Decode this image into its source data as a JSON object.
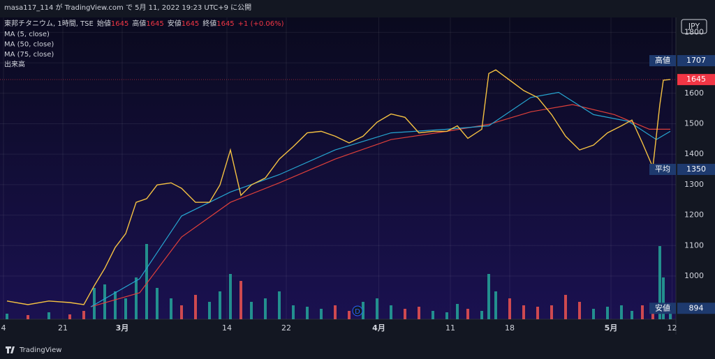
{
  "header": {
    "publisher": "masa117_114 が TradingView.com で 5月 11, 2022 19:23 UTC+9 に公開"
  },
  "legend": {
    "symbol": "東邦チタニウム, 1時間, TSE",
    "ohlc": [
      {
        "label": "始値",
        "value": "1645"
      },
      {
        "label": "高値",
        "value": "1645"
      },
      {
        "label": "安値",
        "value": "1645"
      },
      {
        "label": "終値",
        "value": "1645"
      }
    ],
    "change": "+1 (+0.06%)",
    "indicators": [
      "MA (5, close)",
      "MA (50, close)",
      "MA (75, close)",
      "出来高"
    ]
  },
  "chart_data": {
    "type": "line",
    "currency": "JPY",
    "xlim": [
      0,
      193.6
    ],
    "xticks": [
      {
        "value": 1,
        "label": "4"
      },
      {
        "value": 18,
        "label": "21"
      },
      {
        "value": 35,
        "label": "3月"
      },
      {
        "value": 65,
        "label": "14"
      },
      {
        "value": 82,
        "label": "22"
      },
      {
        "value": 108.5,
        "label": "4月"
      },
      {
        "value": 129,
        "label": "11"
      },
      {
        "value": 146,
        "label": "18"
      },
      {
        "value": 175,
        "label": "5月"
      },
      {
        "value": 192.5,
        "label": "12"
      }
    ],
    "ylim": [
      858,
      1849
    ],
    "yticks": [
      1000,
      1100,
      1200,
      1300,
      1400,
      1500,
      1600,
      1700,
      1800
    ],
    "series": [
      {
        "name": "MA (5, close)",
        "color": "#f5c242",
        "x": [
          2,
          8,
          14,
          20,
          24,
          27,
          30,
          33,
          36,
          39,
          42,
          45,
          49,
          52,
          56,
          60,
          63,
          66,
          69,
          72,
          76,
          80,
          84,
          88,
          92,
          96,
          100,
          104,
          108,
          112,
          116,
          120,
          124,
          128,
          131,
          134,
          138,
          140,
          142,
          146,
          150,
          154,
          158,
          162,
          166,
          170,
          174,
          178,
          181,
          184,
          187,
          189,
          190,
          192
        ],
        "values": [
          918,
          906,
          918,
          913,
          906,
          968,
          1025,
          1094,
          1139,
          1242,
          1254,
          1299,
          1306,
          1288,
          1242,
          1242,
          1299,
          1414,
          1265,
          1299,
          1322,
          1384,
          1425,
          1470,
          1475,
          1459,
          1437,
          1459,
          1505,
          1532,
          1521,
          1470,
          1475,
          1475,
          1493,
          1452,
          1482,
          1665,
          1677,
          1643,
          1609,
          1586,
          1530,
          1459,
          1414,
          1430,
          1470,
          1493,
          1512,
          1437,
          1357,
          1563,
          1643,
          1645
        ]
      },
      {
        "name": "MA (50, close)",
        "color": "#26a6d1",
        "x": [
          26,
          40,
          52,
          66,
          80,
          96,
          112,
          128,
          140,
          152,
          160,
          170,
          180,
          188,
          192
        ],
        "values": [
          899,
          991,
          1197,
          1276,
          1333,
          1414,
          1470,
          1482,
          1493,
          1586,
          1603,
          1530,
          1508,
          1448,
          1475
        ]
      },
      {
        "name": "MA (75, close)",
        "color": "#e0403a",
        "x": [
          26,
          40,
          52,
          66,
          80,
          96,
          112,
          128,
          140,
          152,
          164,
          176,
          186,
          192
        ],
        "values": [
          899,
          945,
          1128,
          1242,
          1306,
          1384,
          1448,
          1475,
          1498,
          1539,
          1563,
          1530,
          1482,
          1482
        ]
      }
    ],
    "volume": {
      "x": [
        2,
        8,
        14,
        20,
        24,
        27,
        30,
        33,
        36,
        39,
        42,
        45,
        49,
        52,
        56,
        60,
        63,
        66,
        69,
        72,
        76,
        80,
        84,
        88,
        92,
        96,
        100,
        104,
        108,
        112,
        116,
        120,
        124,
        128,
        131,
        134,
        138,
        140,
        142,
        146,
        150,
        154,
        158,
        162,
        166,
        170,
        174,
        178,
        181,
        184,
        187,
        189,
        190,
        192
      ],
      "values": [
        8,
        6,
        10,
        7,
        12,
        45,
        50,
        40,
        30,
        60,
        108,
        45,
        30,
        20,
        35,
        25,
        40,
        65,
        55,
        25,
        30,
        40,
        20,
        18,
        15,
        20,
        12,
        25,
        30,
        20,
        15,
        18,
        12,
        10,
        22,
        15,
        12,
        65,
        40,
        30,
        20,
        18,
        20,
        35,
        25,
        15,
        18,
        20,
        12,
        20,
        15,
        105,
        60,
        10
      ]
    },
    "price_labels": [
      {
        "label": "高値",
        "value": 1707,
        "color": "#1e3a6e"
      },
      {
        "label": null,
        "value": 1645,
        "color": "#f23645"
      },
      {
        "label": "平均",
        "value": 1350,
        "color": "#1e3a6e"
      },
      {
        "label": "安値",
        "value": 894,
        "color": "#1e3a6e"
      }
    ],
    "grid": true
  },
  "footer": {
    "brand": "TradingView"
  }
}
